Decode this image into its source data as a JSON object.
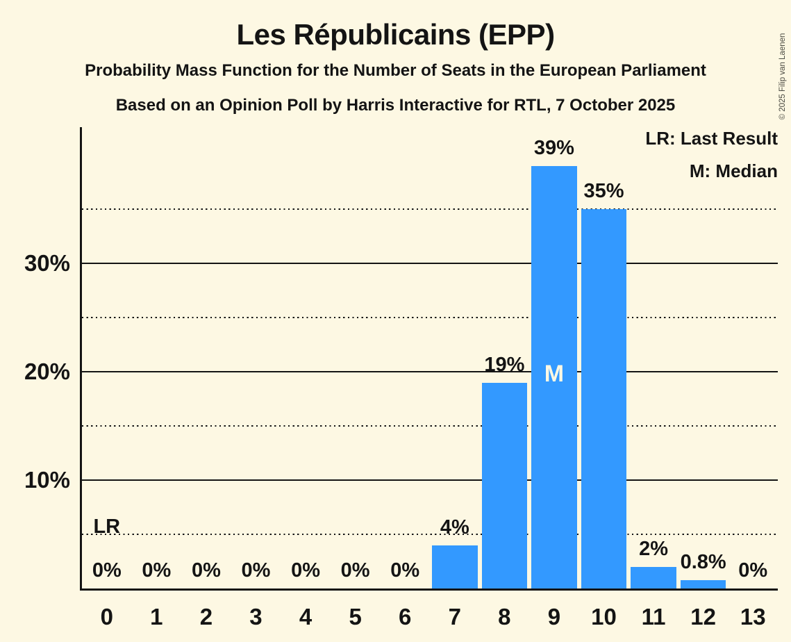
{
  "copyright": "© 2025 Filip van Laenen",
  "colors": {
    "background": "#FDF8E3",
    "bar": "#3399FF",
    "text": "#141414",
    "median_text": "#FDF8E3"
  },
  "legend": {
    "last_result": "LR: Last Result",
    "median": "M: Median"
  },
  "chart_data": {
    "type": "bar",
    "title": "Les Républicains (EPP)",
    "subtitle": "Probability Mass Function for the Number of Seats in the European Parliament",
    "source_line": "Based on an Opinion Poll by Harris Interactive for RTL, 7 October 2025",
    "xlabel": "",
    "ylabel": "",
    "categories": [
      "0",
      "1",
      "2",
      "3",
      "4",
      "5",
      "6",
      "7",
      "8",
      "9",
      "10",
      "11",
      "12",
      "13"
    ],
    "values": [
      0,
      0,
      0,
      0,
      0,
      0,
      0,
      4,
      19,
      39,
      35,
      2,
      0.8,
      0
    ],
    "bar_labels": [
      "0%",
      "0%",
      "0%",
      "0%",
      "0%",
      "0%",
      "0%",
      "4%",
      "19%",
      "39%",
      "35%",
      "2%",
      "0.8%",
      "0%"
    ],
    "ylim": [
      0,
      42.6
    ],
    "y_ticks": [
      {
        "value": 10,
        "label": "10%"
      },
      {
        "value": 20,
        "label": "20%"
      },
      {
        "value": 30,
        "label": "30%"
      }
    ],
    "dotted_gridlines": [
      5,
      15,
      25,
      35
    ],
    "grid": true,
    "legend_position": "top-right",
    "legend_entries": [
      "LR: Last Result",
      "M: Median"
    ],
    "median": {
      "category": "9",
      "label": "M"
    },
    "last_result": {
      "category": "0",
      "label": "LR"
    }
  }
}
